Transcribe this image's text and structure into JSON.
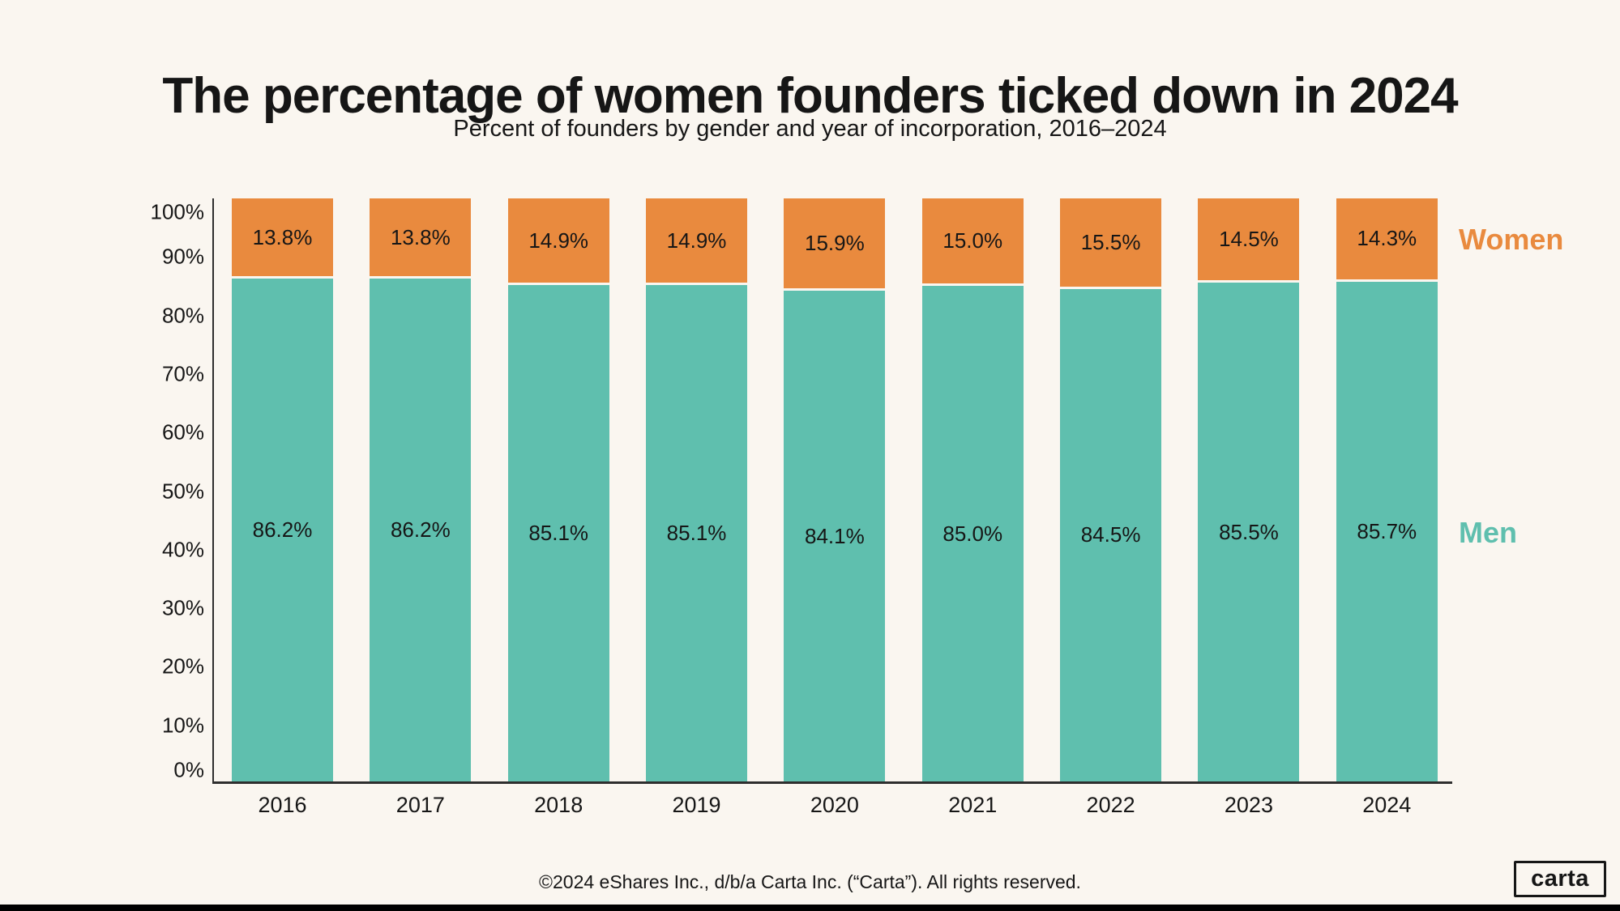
{
  "page": {
    "title": "The percentage of women founders ticked down in 2024",
    "subtitle": "Percent of founders by gender and year of incorporation, 2016–2024"
  },
  "legend": {
    "women": "Women",
    "men": "Men"
  },
  "footer": {
    "copyright": "©2024 eShares Inc., d/b/a Carta Inc. (“Carta”). All rights reserved.",
    "logo": "carta"
  },
  "colors": {
    "background": "#FAF6F0",
    "women": "#E98A3E",
    "men": "#5FBFAE",
    "text": "#161616",
    "axis": "#2E2E2E",
    "bottom_bar": "#000000"
  },
  "chart_data": {
    "type": "bar",
    "stacked": true,
    "title": "The percentage of women founders ticked down in 2024",
    "subtitle": "Percent of founders by gender and year of incorporation, 2016–2024",
    "categories": [
      "2016",
      "2017",
      "2018",
      "2019",
      "2020",
      "2021",
      "2022",
      "2023",
      "2024"
    ],
    "series": [
      {
        "name": "Men",
        "color_key": "men",
        "values": [
          86.2,
          86.2,
          85.1,
          85.1,
          84.1,
          85.0,
          84.5,
          85.5,
          85.7
        ]
      },
      {
        "name": "Women",
        "color_key": "women",
        "values": [
          13.8,
          13.8,
          14.9,
          14.9,
          15.9,
          15.0,
          15.5,
          14.5,
          14.3
        ]
      }
    ],
    "value_suffix": "%",
    "y_axis": {
      "min": 0,
      "max": 100,
      "ticks": [
        "100%",
        "90%",
        "80%",
        "70%",
        "60%",
        "50%",
        "40%",
        "30%",
        "20%",
        "10%",
        "0%"
      ]
    },
    "grid": false,
    "legend_position": "right"
  }
}
